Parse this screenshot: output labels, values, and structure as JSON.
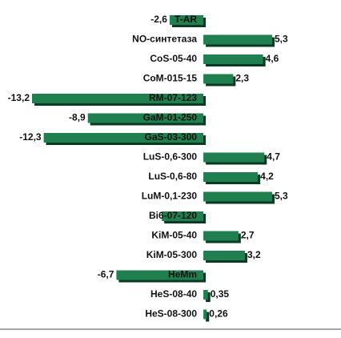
{
  "chart_data": {
    "type": "bar",
    "orientation": "horizontal",
    "categories": [
      "T-AR",
      "NO-синтетаза",
      "CoS-05-40",
      "CoM-015-15",
      "RM-07-123",
      "GaM-01-250",
      "GaS-03-300",
      "LuS-0,6-300",
      "LuS-0,6-80",
      "LuM-0,1-230",
      "Bi6-07-120",
      "KiM-05-40",
      "KiM-05-300",
      "HeMm",
      "HeS-08-40",
      "HeS-08-300"
    ],
    "values": [
      -2.6,
      5.3,
      4.6,
      2.3,
      -13.2,
      -8.9,
      -12.3,
      4.7,
      4.2,
      5.3,
      -3.2,
      2.7,
      3.2,
      -6.7,
      0.35,
      0.26
    ],
    "value_labels": [
      "-2,6",
      "5,3",
      "4,6",
      "2,3",
      "-13,2",
      "-8,9",
      "-12,3",
      "4,7",
      "4,2",
      "5,3",
      null,
      "2,7",
      "3,2",
      "-6,7",
      "0,35",
      "0,26"
    ],
    "color": "#1f7f4f"
  }
}
